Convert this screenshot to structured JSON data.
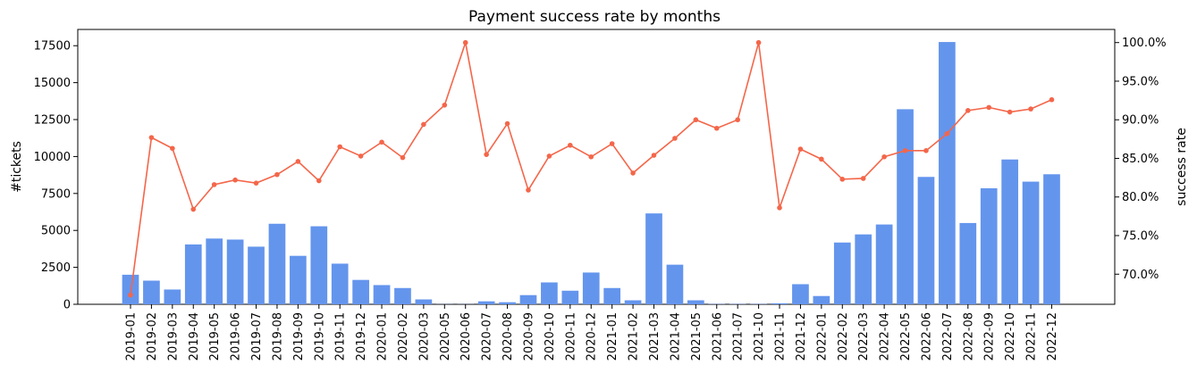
{
  "chart_data": {
    "type": "bar",
    "title": "Payment success rate by months",
    "xlabel": "",
    "ylabel": "#tickets",
    "y2label": "success rate",
    "ylim": [
      0,
      18600
    ],
    "y2lim": [
      66.1,
      101.7
    ],
    "yticks": [
      0,
      2500,
      5000,
      7500,
      10000,
      12500,
      15000,
      17500
    ],
    "y2ticks": [
      70,
      75,
      80,
      85,
      90,
      95,
      100
    ],
    "y2tick_labels": [
      "70.0%",
      "75.0%",
      "80.0%",
      "85.0%",
      "90.0%",
      "95.0%",
      "100.0%"
    ],
    "grid": false,
    "categories": [
      "2019-01",
      "2019-02",
      "2019-03",
      "2019-04",
      "2019-05",
      "2019-06",
      "2019-07",
      "2019-08",
      "2019-09",
      "2019-10",
      "2019-11",
      "2019-12",
      "2020-01",
      "2020-02",
      "2020-03",
      "2020-05",
      "2020-06",
      "2020-07",
      "2020-08",
      "2020-09",
      "2020-10",
      "2020-11",
      "2020-12",
      "2021-01",
      "2021-02",
      "2021-03",
      "2021-04",
      "2021-05",
      "2021-06",
      "2021-07",
      "2021-10",
      "2021-11",
      "2021-12",
      "2022-01",
      "2022-02",
      "2022-03",
      "2022-04",
      "2022-05",
      "2022-06",
      "2022-07",
      "2022-08",
      "2022-09",
      "2022-10",
      "2022-11",
      "2022-12"
    ],
    "series": [
      {
        "kind": "bar",
        "axis": "left",
        "color": "#6495ED",
        "values": [
          2000,
          1600,
          1000,
          4050,
          4450,
          4380,
          3900,
          5450,
          3280,
          5280,
          2750,
          1650,
          1300,
          1100,
          330,
          10,
          10,
          200,
          140,
          620,
          1480,
          920,
          2150,
          1100,
          270,
          6150,
          2680,
          270,
          20,
          20,
          20,
          70,
          1360,
          560,
          4180,
          4730,
          5400,
          13200,
          8620,
          17750,
          5500,
          7850,
          9800,
          8300,
          8800
        ]
      },
      {
        "kind": "line",
        "axis": "right",
        "color": "#F4664A",
        "values": [
          67.3,
          87.7,
          86.3,
          78.4,
          81.6,
          82.2,
          81.8,
          82.9,
          84.6,
          82.1,
          86.5,
          85.3,
          87.1,
          85.1,
          89.4,
          91.9,
          100.0,
          85.5,
          89.5,
          80.9,
          85.3,
          86.7,
          85.2,
          86.9,
          83.1,
          85.4,
          87.6,
          90.0,
          88.9,
          90.0,
          100.0,
          78.6,
          86.2,
          84.9,
          82.3,
          82.4,
          85.2,
          86.0,
          86.0,
          88.2,
          91.2,
          91.6,
          91.0,
          91.4,
          92.6
        ]
      }
    ]
  }
}
